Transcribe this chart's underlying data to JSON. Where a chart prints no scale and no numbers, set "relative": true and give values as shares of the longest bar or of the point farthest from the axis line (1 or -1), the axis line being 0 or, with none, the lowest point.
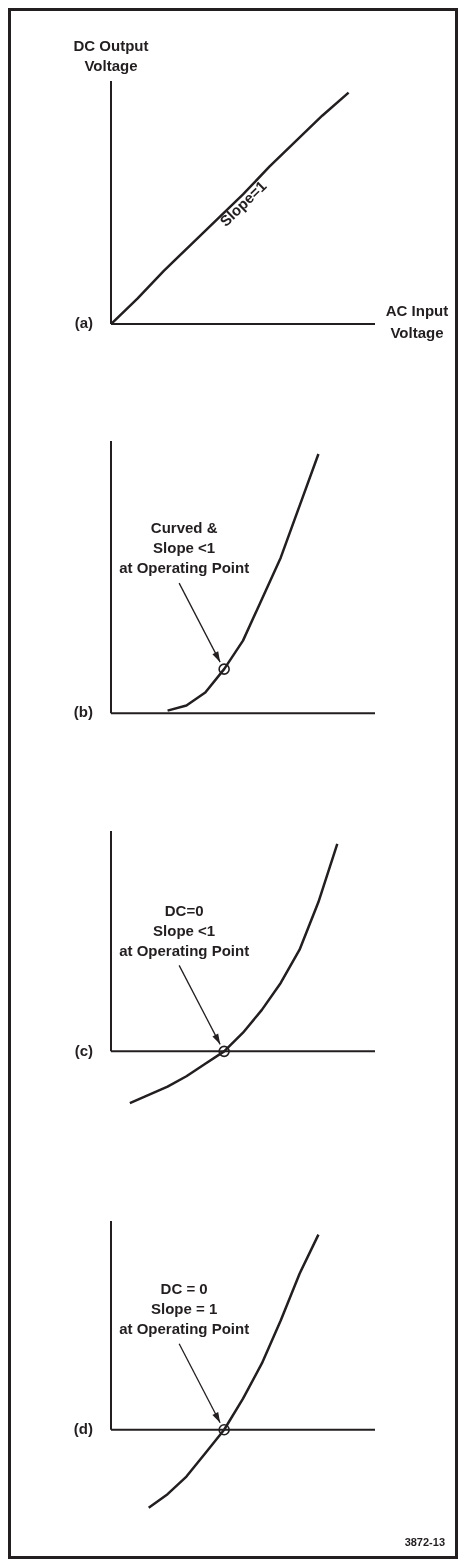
{
  "chart_data": [
    {
      "type": "line",
      "relative": true,
      "ylabel": "DC Output Voltage",
      "xlabel": "AC Input Voltage",
      "annotations": [
        "(a)",
        "Slope=1"
      ],
      "categories": [
        null,
        null,
        null,
        null,
        null,
        null,
        null,
        null,
        null,
        null,
        null
      ],
      "series": [
        {
          "color": "#231f20",
          "values": [
            0,
            0.11,
            0.23,
            0.34,
            0.45,
            0.56,
            0.68,
            0.79,
            0.9,
            1.0,
            null
          ]
        }
      ]
    },
    {
      "type": "line",
      "relative": true,
      "annotations": [
        "(b)",
        "Curved &\nSlope <1\nat Operating Point"
      ],
      "categories": [
        null,
        null,
        null,
        null,
        null,
        null,
        null,
        null,
        null,
        null,
        null,
        null,
        null,
        null,
        null
      ],
      "series": [
        {
          "color": "#231f20",
          "values": [
            null,
            null,
            null,
            0.01,
            0.03,
            0.08,
            0.17,
            0.28,
            0.44,
            0.6,
            0.8,
            1.0,
            null,
            null,
            null
          ]
        },
        {
          "color": "#231f20",
          "marker": "circle",
          "values": [
            null,
            null,
            null,
            null,
            null,
            null,
            0.17,
            null,
            null,
            null,
            null,
            null,
            null,
            null,
            null
          ]
        }
      ]
    },
    {
      "type": "line",
      "relative": true,
      "annotations": [
        "(c)",
        "DC=0\nSlope <1\nat Operating Point"
      ],
      "categories": [
        null,
        null,
        null,
        null,
        null,
        null,
        null,
        null,
        null,
        null,
        null,
        null,
        null,
        null,
        null
      ],
      "series": [
        {
          "color": "#231f20",
          "values": [
            null,
            -0.25,
            -0.21,
            -0.17,
            -0.12,
            -0.06,
            0,
            0.09,
            0.2,
            0.33,
            0.49,
            0.72,
            1.0,
            null,
            null
          ]
        },
        {
          "color": "#231f20",
          "marker": "circle",
          "values": [
            null,
            null,
            null,
            null,
            null,
            null,
            0,
            null,
            null,
            null,
            null,
            null,
            null,
            null,
            null
          ]
        }
      ]
    },
    {
      "type": "line",
      "relative": true,
      "annotations": [
        "(d)",
        "DC = 0\nSlope = 1\nat Operating Point",
        "3872-13"
      ],
      "categories": [
        null,
        null,
        null,
        null,
        null,
        null,
        null,
        null,
        null,
        null,
        null,
        null,
        null,
        null,
        null
      ],
      "series": [
        {
          "color": "#231f20",
          "values": [
            null,
            null,
            -0.4,
            -0.33,
            -0.24,
            -0.12,
            0,
            0.16,
            0.34,
            0.56,
            0.8,
            1.0,
            null,
            null,
            null
          ]
        },
        {
          "color": "#231f20",
          "marker": "circle",
          "values": [
            null,
            null,
            null,
            null,
            null,
            null,
            0,
            null,
            null,
            null,
            null,
            null,
            null,
            null,
            null
          ]
        }
      ]
    }
  ]
}
